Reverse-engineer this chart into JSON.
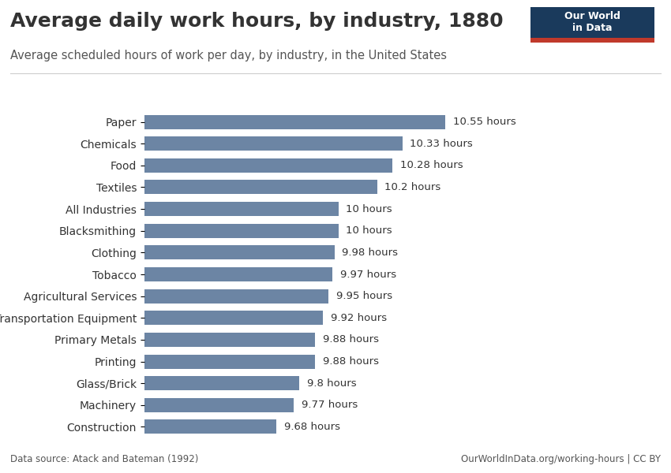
{
  "title": "Average daily work hours, by industry, 1880",
  "subtitle": "Average scheduled hours of work per day, by industry, in the United States",
  "categories": [
    "Paper",
    "Chemicals",
    "Food",
    "Textiles",
    "All Industries",
    "Blacksmithing",
    "Clothing",
    "Tobacco",
    "Agricultural Services",
    "Transportation Equipment",
    "Primary Metals",
    "Printing",
    "Glass/Brick",
    "Machinery",
    "Construction"
  ],
  "values": [
    10.55,
    10.33,
    10.28,
    10.2,
    10.0,
    10.0,
    9.98,
    9.97,
    9.95,
    9.92,
    9.88,
    9.88,
    9.8,
    9.77,
    9.68
  ],
  "labels": [
    "10.55 hours",
    "10.33 hours",
    "10.28 hours",
    "10.2 hours",
    "10 hours",
    "10 hours",
    "9.98 hours",
    "9.97 hours",
    "9.95 hours",
    "9.92 hours",
    "9.88 hours",
    "9.88 hours",
    "9.8 hours",
    "9.77 hours",
    "9.68 hours"
  ],
  "bar_color": "#6c85a4",
  "background_color": "#ffffff",
  "text_color": "#333333",
  "title_fontsize": 18,
  "subtitle_fontsize": 10.5,
  "label_fontsize": 9.5,
  "tick_fontsize": 10,
  "footer_left": "Data source: Atack and Bateman (1992)",
  "footer_right": "OurWorldInData.org/working-hours | CC BY",
  "xlim_min": 9.0,
  "xlim_max": 11.3,
  "owid_box_color": "#1a3a5c",
  "owid_red": "#c0392b"
}
